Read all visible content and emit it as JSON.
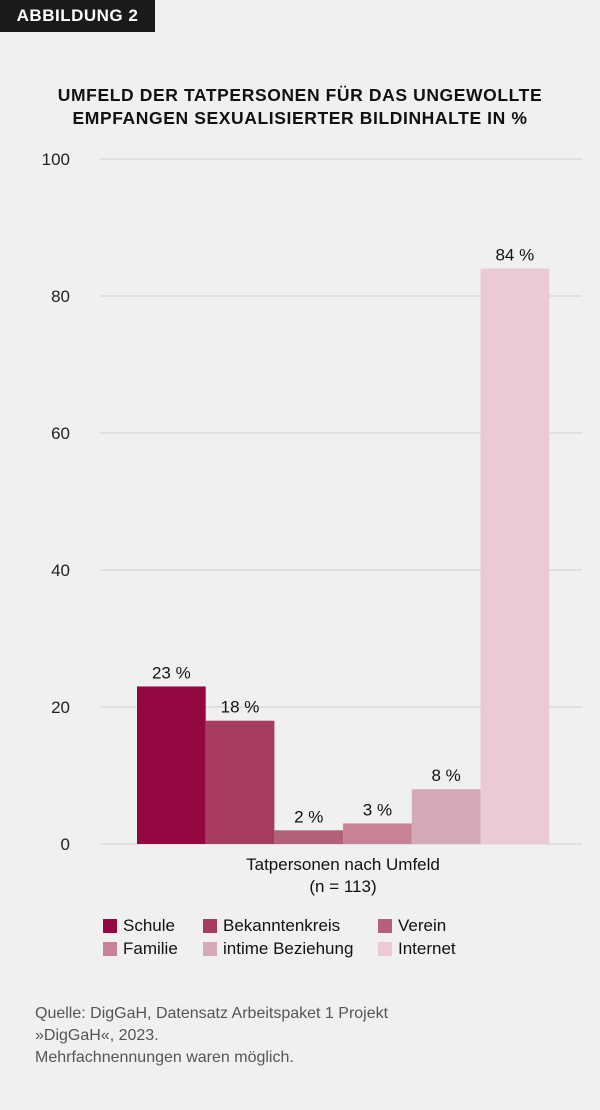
{
  "badge": "ABBILDUNG 2",
  "chart_data": {
    "type": "bar",
    "title": "UMFELD DER TATPERSONEN FÜR DAS UNGEWOLLTE EMPFANGEN SEXUALISIERTER BILDINHALTE IN %",
    "xlabel": "Tatpersonen nach Umfeld",
    "xlabel_n": "(n = 113)",
    "ylim": [
      0,
      100
    ],
    "yticks": [
      0,
      20,
      40,
      60,
      80,
      100
    ],
    "grid": true,
    "legend_placement": "bottom",
    "series": [
      {
        "name": "Schule",
        "value": 23,
        "label": "23 %",
        "color": "#930742"
      },
      {
        "name": "Bekanntenkreis",
        "value": 18,
        "label": "18 %",
        "color": "#a63d60"
      },
      {
        "name": "Verein",
        "value": 2,
        "label": "2 %",
        "color": "#b56079"
      },
      {
        "name": "Familie",
        "value": 3,
        "label": "3 %",
        "color": "#c88295"
      },
      {
        "name": "intime Beziehung",
        "value": 8,
        "label": "8 %",
        "color": "#d5a9b7"
      },
      {
        "name": "Internet",
        "value": 84,
        "label": "84 %",
        "color": "#eacbd5"
      }
    ]
  },
  "title_line1": "UMFELD DER TATPERSONEN FÜR DAS UNGEWOLLTE",
  "title_line2": "EMPFANGEN SEXUALISIERTER BILDINHALTE IN %",
  "source_line1": "Quelle: DigGaH, Datensatz Arbeitspaket 1 Projekt",
  "source_line2": "»DigGaH«, 2023.",
  "source_line3": "Mehrfachnennungen waren möglich."
}
